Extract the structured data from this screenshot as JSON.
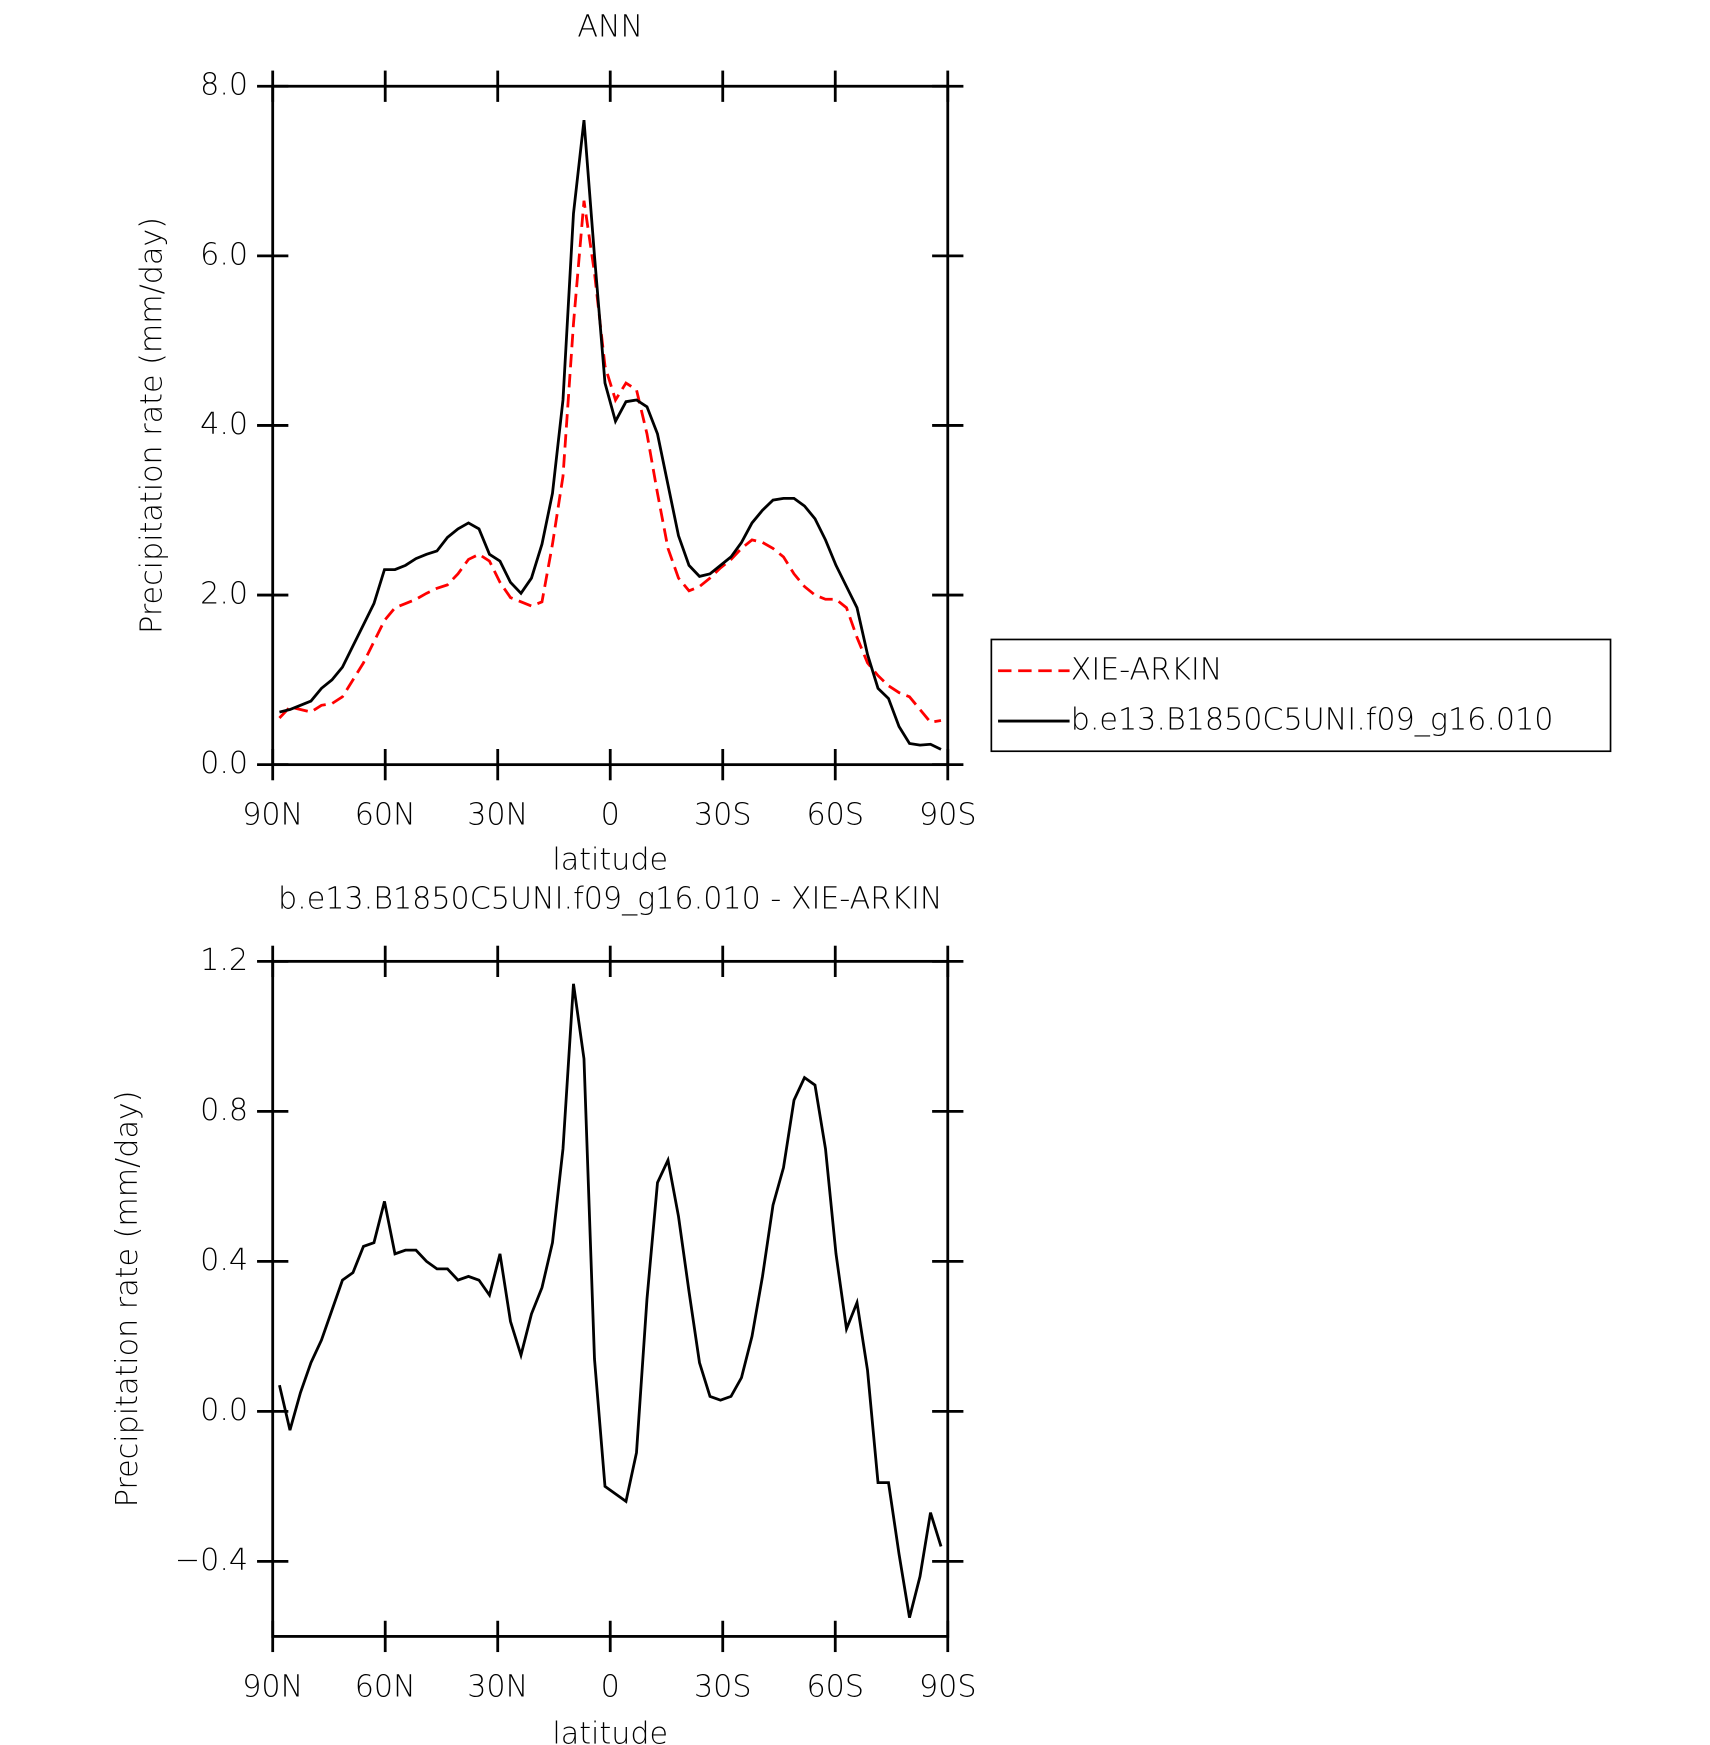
{
  "chart_data": [
    {
      "type": "line",
      "title": "ANN",
      "x_label": "latitude",
      "y_label": "Precipitation rate (mm/day)",
      "x": [
        88.2,
        85.4,
        82.6,
        79.8,
        77,
        74.2,
        71.4,
        68.6,
        65.8,
        63,
        60.2,
        57.4,
        54.6,
        51.8,
        49,
        46.2,
        43.4,
        40.6,
        37.8,
        35,
        32.2,
        29.4,
        26.6,
        23.8,
        21,
        18.2,
        15.4,
        12.6,
        9.8,
        7,
        4.2,
        1.4,
        -1.4,
        -4.2,
        -7,
        -9.8,
        -12.6,
        -15.4,
        -18.2,
        -21,
        -23.8,
        -26.6,
        -29.4,
        -32.2,
        -35,
        -37.8,
        -40.6,
        -43.4,
        -46.2,
        -49,
        -51.8,
        -54.6,
        -57.4,
        -60.2,
        -63,
        -65.8,
        -68.6,
        -71.4,
        -74.2,
        -77,
        -79.8,
        -82.6,
        -85.4,
        -88.2
      ],
      "xlim": [
        90,
        -90
      ],
      "xticks": [
        {
          "value": 90,
          "label": "90N"
        },
        {
          "value": 60,
          "label": "60N"
        },
        {
          "value": 30,
          "label": "30N"
        },
        0,
        {
          "value": -30,
          "label": "30S"
        },
        {
          "value": -60,
          "label": "60S"
        },
        {
          "value": -90,
          "label": "90S"
        }
      ],
      "ylim": [
        0,
        8
      ],
      "yticks": [
        {
          "value": 0,
          "label": "0.0"
        },
        {
          "value": 2,
          "label": "2.0"
        },
        {
          "value": 4,
          "label": "4.0"
        },
        {
          "value": 6,
          "label": "6.0"
        },
        {
          "value": 8,
          "label": "8.0"
        }
      ],
      "legend": "right",
      "series": [
        {
          "name": "XIE-ARKIN",
          "color": "#ff0000",
          "dash": "dashed",
          "values": [
            0.55,
            0.68,
            0.65,
            0.62,
            0.7,
            0.72,
            0.8,
            1.0,
            1.2,
            1.45,
            1.7,
            1.85,
            1.9,
            1.95,
            2.02,
            2.08,
            2.12,
            2.25,
            2.42,
            2.48,
            2.4,
            2.15,
            1.97,
            1.92,
            1.87,
            1.92,
            2.6,
            3.4,
            5.2,
            6.65,
            5.8,
            4.7,
            4.3,
            4.5,
            4.42,
            3.9,
            3.2,
            2.55,
            2.2,
            2.05,
            2.1,
            2.2,
            2.32,
            2.42,
            2.55,
            2.65,
            2.62,
            2.55,
            2.45,
            2.25,
            2.1,
            2.0,
            1.95,
            1.95,
            1.85,
            1.5,
            1.2,
            1.05,
            0.93,
            0.85,
            0.8,
            0.65,
            0.5,
            0.52
          ]
        },
        {
          "name": "b.e13.B1850C5UNI.f09_g16.010",
          "color": "#000000",
          "dash": "solid",
          "values": [
            0.62,
            0.65,
            0.7,
            0.75,
            0.9,
            1.0,
            1.15,
            1.4,
            1.65,
            1.9,
            2.3,
            2.3,
            2.35,
            2.43,
            2.48,
            2.52,
            2.68,
            2.78,
            2.85,
            2.78,
            2.48,
            2.4,
            2.15,
            2.02,
            2.2,
            2.6,
            3.2,
            4.3,
            6.5,
            7.6,
            6.0,
            4.5,
            4.05,
            4.28,
            4.3,
            4.22,
            3.9,
            3.3,
            2.7,
            2.35,
            2.22,
            2.25,
            2.35,
            2.45,
            2.62,
            2.85,
            3.0,
            3.12,
            3.14,
            3.14,
            3.05,
            2.9,
            2.65,
            2.35,
            2.1,
            1.85,
            1.3,
            0.9,
            0.78,
            0.45,
            0.25,
            0.23,
            0.24,
            0.18
          ]
        }
      ]
    },
    {
      "type": "line",
      "title": "b.e13.B1850C5UNI.f09_g16.010 - XIE-ARKIN",
      "x_label": "latitude",
      "y_label": "Precipitation rate (mm/day)",
      "x": [
        88.2,
        85.4,
        82.6,
        79.8,
        77,
        74.2,
        71.4,
        68.6,
        65.8,
        63,
        60.2,
        57.4,
        54.6,
        51.8,
        49,
        46.2,
        43.4,
        40.6,
        37.8,
        35,
        32.2,
        29.4,
        26.6,
        23.8,
        21,
        18.2,
        15.4,
        12.6,
        9.8,
        7,
        4.2,
        1.4,
        -1.4,
        -4.2,
        -7,
        -9.8,
        -12.6,
        -15.4,
        -18.2,
        -21,
        -23.8,
        -26.6,
        -29.4,
        -32.2,
        -35,
        -37.8,
        -40.6,
        -43.4,
        -46.2,
        -49,
        -51.8,
        -54.6,
        -57.4,
        -60.2,
        -63,
        -65.8,
        -68.6,
        -71.4,
        -74.2,
        -77,
        -79.8,
        -82.6,
        -85.4,
        -88.2
      ],
      "xlim": [
        90,
        -90
      ],
      "xticks": [
        {
          "value": 90,
          "label": "90N"
        },
        {
          "value": 60,
          "label": "60N"
        },
        {
          "value": 30,
          "label": "30N"
        },
        0,
        {
          "value": -30,
          "label": "30S"
        },
        {
          "value": -60,
          "label": "60S"
        },
        {
          "value": -90,
          "label": "90S"
        }
      ],
      "ylim": [
        -0.6,
        1.2
      ],
      "yticks": [
        {
          "value": -0.4,
          "label": "−0.4"
        },
        {
          "value": 0,
          "label": "0.0"
        },
        {
          "value": 0.4,
          "label": "0.4"
        },
        {
          "value": 0.8,
          "label": "0.8"
        },
        {
          "value": 1.2,
          "label": "1.2"
        }
      ],
      "color": "#000000",
      "values": [
        0.07,
        -0.05,
        0.05,
        0.13,
        0.19,
        0.27,
        0.35,
        0.37,
        0.44,
        0.45,
        0.56,
        0.42,
        0.43,
        0.43,
        0.4,
        0.38,
        0.38,
        0.35,
        0.36,
        0.35,
        0.31,
        0.42,
        0.24,
        0.15,
        0.26,
        0.33,
        0.45,
        0.7,
        1.14,
        0.94,
        0.14,
        -0.2,
        -0.22,
        -0.24,
        -0.11,
        0.3,
        0.61,
        0.67,
        0.52,
        0.32,
        0.13,
        0.04,
        0.03,
        0.04,
        0.09,
        0.2,
        0.36,
        0.55,
        0.65,
        0.83,
        0.89,
        0.87,
        0.7,
        0.42,
        0.22,
        0.29,
        0.11,
        -0.19,
        -0.19,
        -0.38,
        -0.55,
        -0.44,
        -0.27,
        -0.36
      ]
    }
  ]
}
